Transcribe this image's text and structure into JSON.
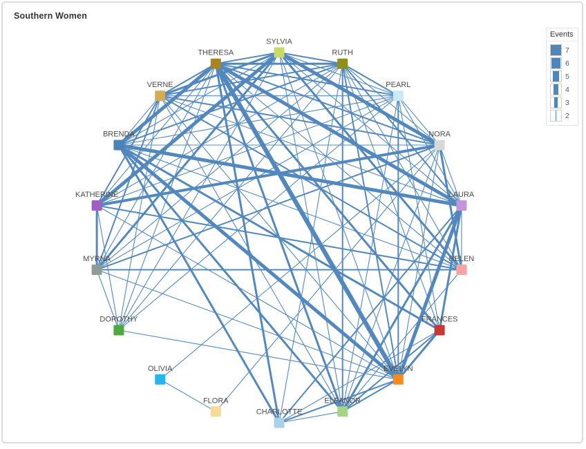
{
  "title": "Southern Women",
  "legend": {
    "title": "Events",
    "color": "#4f87ba",
    "items": [
      7,
      6,
      5,
      4,
      3,
      2
    ]
  },
  "chart_data": {
    "type": "node-link-network",
    "title": "Southern Women",
    "layout": "circular",
    "legend_title": "Events",
    "edge_color": "#5288bd",
    "edge_weight_range": [
      2,
      7
    ],
    "nodes": [
      {
        "name": "SYLVIA",
        "color": "#c8da68"
      },
      {
        "name": "RUTH",
        "color": "#8e8f1e"
      },
      {
        "name": "PEARL",
        "color": "#c9eaf3"
      },
      {
        "name": "NORA",
        "color": "#d8d8d8"
      },
      {
        "name": "LAURA",
        "color": "#c694da"
      },
      {
        "name": "HELEN",
        "color": "#fba3a3"
      },
      {
        "name": "FRANCES",
        "color": "#cd3434"
      },
      {
        "name": "EVELYN",
        "color": "#f78b1e"
      },
      {
        "name": "ELEANOR",
        "color": "#a5d487"
      },
      {
        "name": "CHARLOTTE",
        "color": "#abd0e9"
      },
      {
        "name": "FLORA",
        "color": "#f6db93"
      },
      {
        "name": "OLIVIA",
        "color": "#27b6ec"
      },
      {
        "name": "DOROTHY",
        "color": "#4fa83d"
      },
      {
        "name": "MYRNA",
        "color": "#8d9c95"
      },
      {
        "name": "KATHERINE",
        "color": "#a15ec4"
      },
      {
        "name": "BRENDA",
        "color": "#4c83b6"
      },
      {
        "name": "VERNE",
        "color": "#d2ac57"
      },
      {
        "name": "THERESA",
        "color": "#a8861d"
      }
    ],
    "edges": [
      [
        "EVELYN",
        "LAURA",
        6
      ],
      [
        "EVELYN",
        "THERESA",
        7
      ],
      [
        "EVELYN",
        "BRENDA",
        6
      ],
      [
        "EVELYN",
        "CHARLOTTE",
        3
      ],
      [
        "EVELYN",
        "FRANCES",
        4
      ],
      [
        "EVELYN",
        "ELEANOR",
        3
      ],
      [
        "EVELYN",
        "PEARL",
        3
      ],
      [
        "EVELYN",
        "RUTH",
        3
      ],
      [
        "EVELYN",
        "VERNE",
        2
      ],
      [
        "EVELYN",
        "MYRNA",
        2
      ],
      [
        "EVELYN",
        "KATHERINE",
        2
      ],
      [
        "EVELYN",
        "SYLVIA",
        2
      ],
      [
        "EVELYN",
        "NORA",
        2
      ],
      [
        "EVELYN",
        "DOROTHY",
        2
      ],
      [
        "LAURA",
        "THERESA",
        6
      ],
      [
        "LAURA",
        "BRENDA",
        6
      ],
      [
        "LAURA",
        "CHARLOTTE",
        3
      ],
      [
        "LAURA",
        "FRANCES",
        4
      ],
      [
        "LAURA",
        "ELEANOR",
        4
      ],
      [
        "LAURA",
        "PEARL",
        2
      ],
      [
        "LAURA",
        "RUTH",
        3
      ],
      [
        "LAURA",
        "VERNE",
        2
      ],
      [
        "LAURA",
        "SYLVIA",
        2
      ],
      [
        "LAURA",
        "NORA",
        2
      ],
      [
        "LAURA",
        "HELEN",
        2
      ],
      [
        "THERESA",
        "BRENDA",
        6
      ],
      [
        "THERESA",
        "CHARLOTTE",
        4
      ],
      [
        "THERESA",
        "FRANCES",
        4
      ],
      [
        "THERESA",
        "ELEANOR",
        4
      ],
      [
        "THERESA",
        "PEARL",
        3
      ],
      [
        "THERESA",
        "RUTH",
        4
      ],
      [
        "THERESA",
        "VERNE",
        3
      ],
      [
        "THERESA",
        "MYRNA",
        2
      ],
      [
        "THERESA",
        "KATHERINE",
        2
      ],
      [
        "THERESA",
        "SYLVIA",
        3
      ],
      [
        "THERESA",
        "NORA",
        3
      ],
      [
        "THERESA",
        "HELEN",
        2
      ],
      [
        "THERESA",
        "DOROTHY",
        2
      ],
      [
        "BRENDA",
        "CHARLOTTE",
        4
      ],
      [
        "BRENDA",
        "FRANCES",
        4
      ],
      [
        "BRENDA",
        "ELEANOR",
        4
      ],
      [
        "BRENDA",
        "PEARL",
        2
      ],
      [
        "BRENDA",
        "RUTH",
        3
      ],
      [
        "BRENDA",
        "VERNE",
        2
      ],
      [
        "BRENDA",
        "SYLVIA",
        2
      ],
      [
        "BRENDA",
        "NORA",
        2
      ],
      [
        "BRENDA",
        "HELEN",
        2
      ],
      [
        "CHARLOTTE",
        "FRANCES",
        2
      ],
      [
        "CHARLOTTE",
        "ELEANOR",
        2
      ],
      [
        "CHARLOTTE",
        "RUTH",
        2
      ],
      [
        "FRANCES",
        "ELEANOR",
        3
      ],
      [
        "FRANCES",
        "PEARL",
        2
      ],
      [
        "FRANCES",
        "RUTH",
        2
      ],
      [
        "ELEANOR",
        "PEARL",
        2
      ],
      [
        "ELEANOR",
        "RUTH",
        3
      ],
      [
        "ELEANOR",
        "VERNE",
        2
      ],
      [
        "ELEANOR",
        "SYLVIA",
        2
      ],
      [
        "ELEANOR",
        "NORA",
        2
      ],
      [
        "ELEANOR",
        "HELEN",
        2
      ],
      [
        "PEARL",
        "RUTH",
        3
      ],
      [
        "PEARL",
        "VERNE",
        2
      ],
      [
        "PEARL",
        "MYRNA",
        2
      ],
      [
        "PEARL",
        "KATHERINE",
        2
      ],
      [
        "PEARL",
        "SYLVIA",
        2
      ],
      [
        "PEARL",
        "NORA",
        2
      ],
      [
        "PEARL",
        "DOROTHY",
        2
      ],
      [
        "RUTH",
        "VERNE",
        3
      ],
      [
        "RUTH",
        "MYRNA",
        2
      ],
      [
        "RUTH",
        "KATHERINE",
        2
      ],
      [
        "RUTH",
        "SYLVIA",
        3
      ],
      [
        "RUTH",
        "NORA",
        2
      ],
      [
        "RUTH",
        "HELEN",
        2
      ],
      [
        "RUTH",
        "DOROTHY",
        2
      ],
      [
        "VERNE",
        "MYRNA",
        3
      ],
      [
        "VERNE",
        "KATHERINE",
        3
      ],
      [
        "VERNE",
        "SYLVIA",
        4
      ],
      [
        "VERNE",
        "NORA",
        3
      ],
      [
        "VERNE",
        "HELEN",
        3
      ],
      [
        "VERNE",
        "DOROTHY",
        2
      ],
      [
        "MYRNA",
        "KATHERINE",
        4
      ],
      [
        "MYRNA",
        "SYLVIA",
        4
      ],
      [
        "MYRNA",
        "NORA",
        3
      ],
      [
        "MYRNA",
        "HELEN",
        3
      ],
      [
        "MYRNA",
        "DOROTHY",
        2
      ],
      [
        "KATHERINE",
        "SYLVIA",
        6
      ],
      [
        "KATHERINE",
        "NORA",
        5
      ],
      [
        "KATHERINE",
        "HELEN",
        3
      ],
      [
        "KATHERINE",
        "DOROTHY",
        2
      ],
      [
        "SYLVIA",
        "NORA",
        6
      ],
      [
        "SYLVIA",
        "HELEN",
        4
      ],
      [
        "SYLVIA",
        "DOROTHY",
        2
      ],
      [
        "NORA",
        "HELEN",
        4
      ],
      [
        "NORA",
        "OLIVIA",
        2
      ],
      [
        "NORA",
        "FLORA",
        2
      ],
      [
        "OLIVIA",
        "FLORA",
        2
      ]
    ]
  }
}
